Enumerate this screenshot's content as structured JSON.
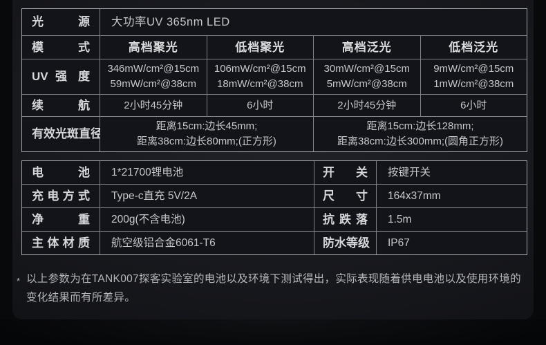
{
  "colors": {
    "page_bg": "#08090b",
    "panel_bg": "#17181d",
    "cell_bg": "#131419",
    "grid_line": "#7f8287",
    "outer_border": "#a4a7ab",
    "text": "#c7c8ca",
    "text_bold": "#d6d7d9",
    "footnote_text": "#b6b7b9"
  },
  "spec_table": {
    "light_source": {
      "label": "光 源",
      "value": "大功率UV 365nm LED"
    },
    "mode": {
      "label": "模 式",
      "columns": [
        "高档聚光",
        "低档聚光",
        "高档泛光",
        "低档泛光"
      ]
    },
    "uv_intensity": {
      "label": "UV 强 度",
      "cells": [
        {
          "line1": "346mW/cm²@15cm",
          "line2": "59mW/cm²@38cm"
        },
        {
          "line1": "106mW/cm²@15cm",
          "line2": "18mW/cm²@38cm"
        },
        {
          "line1": "30mW/cm²@15cm",
          "line2": "5mW/cm²@38cm"
        },
        {
          "line1": "9mW/cm²@15cm",
          "line2": "1mW/cm²@38cm"
        }
      ]
    },
    "runtime": {
      "label": "续 航",
      "values": [
        "2小时45分钟",
        "6小时",
        "2小时45分钟",
        "6小时"
      ]
    },
    "spot_size": {
      "label": "有效光斑直径",
      "cells": [
        {
          "line1": "距离15cm:边长45mm;",
          "line2": "距离38cm:边长80mm;(正方形)"
        },
        {
          "line1": "距离15cm:边长128mm;",
          "line2": "距离38cm:边长300mm;(圆角正方形)"
        }
      ]
    }
  },
  "detail_table": {
    "rows": [
      {
        "label_left": "电 池",
        "value_left": "1*21700锂电池",
        "label_right": "开 关",
        "value_right": "按键开关"
      },
      {
        "label_left": "充电方式",
        "value_left": "Type-c直充 5V/2A",
        "label_right": "尺 寸",
        "value_right": "164x37mm"
      },
      {
        "label_left": "净 重",
        "value_left": "200g(不含电池)",
        "label_right": "抗 跌 落",
        "value_right": "1.5m"
      },
      {
        "label_left": "主体材质",
        "value_left": "航空级铝合金6061-T6",
        "label_right": "防水等级",
        "value_right": "IP67"
      }
    ]
  },
  "footnote": {
    "marker": "*",
    "text": "以上参数为在TANK007探客实验室的电池以及环境下测试得出，实际表现随着供电电池以及使用环境的变化结果而有所差异。"
  }
}
